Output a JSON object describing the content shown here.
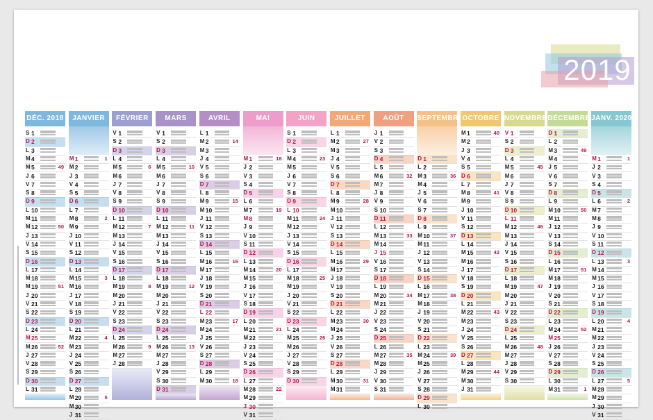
{
  "year": "2019",
  "palette": {
    "blue": "#7fb8df",
    "lavender": "#b1a2d2",
    "purple": "#9d86bd",
    "pink": "#e68fba",
    "lightpink": "#f1a9cd",
    "orange": "#f1a679",
    "peach": "#f3b28a",
    "yellow": "#f0d06f",
    "lightgreen": "#c9d98a",
    "teal": "#82c5cf"
  },
  "months": [
    {
      "name": "DÉC. 2018",
      "color": "#7fb8df",
      "first": "S",
      "start": 1,
      "days": 31,
      "offset": 0,
      "letters": [
        "S",
        "D",
        "L",
        "M",
        "M",
        "J",
        "V",
        "S",
        "D",
        "L",
        "M",
        "M",
        "J",
        "V",
        "S",
        "D",
        "L",
        "M",
        "M",
        "J",
        "V",
        "S",
        "D",
        "L",
        "M",
        "M",
        "J",
        "V",
        "S",
        "D",
        "L"
      ],
      "weeks": {
        "5": "49",
        "12": "50",
        "19": "51",
        "26": "52"
      },
      "holidays": [
        25
      ]
    },
    {
      "name": "JANVIER",
      "color": "#7fb8df",
      "first": "M",
      "start": 1,
      "days": 31,
      "offset": 3,
      "letters": [
        "M",
        "M",
        "J",
        "V",
        "S",
        "D",
        "L",
        "M",
        "M",
        "J",
        "V",
        "S",
        "D",
        "L",
        "M",
        "M",
        "J",
        "V",
        "S",
        "D",
        "L",
        "M",
        "M",
        "J",
        "V",
        "S",
        "D",
        "L",
        "M",
        "M",
        "J"
      ],
      "weeks": {
        "1": "1",
        "8": "2",
        "15": "3",
        "22": "4",
        "29": "5"
      },
      "holidays": [
        1
      ]
    },
    {
      "name": "FÉVRIER",
      "color": "#9d9fd1",
      "first": "V",
      "start": 1,
      "days": 28,
      "offset": 0,
      "letters": [
        "V",
        "S",
        "D",
        "L",
        "M",
        "M",
        "J",
        "V",
        "S",
        "D",
        "L",
        "M",
        "M",
        "J",
        "V",
        "S",
        "D",
        "L",
        "M",
        "M",
        "J",
        "V",
        "S",
        "D",
        "L",
        "M",
        "M",
        "J"
      ],
      "weeks": {
        "5": "6",
        "12": "7",
        "19": "8",
        "26": "9"
      },
      "holidays": []
    },
    {
      "name": "MARS",
      "color": "#a892c8",
      "first": "V",
      "start": 1,
      "days": 31,
      "offset": 0,
      "letters": [
        "V",
        "S",
        "D",
        "L",
        "M",
        "M",
        "J",
        "V",
        "S",
        "D",
        "L",
        "M",
        "M",
        "J",
        "V",
        "S",
        "D",
        "L",
        "M",
        "M",
        "J",
        "V",
        "S",
        "D",
        "L",
        "M",
        "M",
        "J",
        "V",
        "S",
        "D"
      ],
      "weeks": {
        "5": "10",
        "12": "11",
        "19": "12",
        "26": "13"
      },
      "holidays": []
    },
    {
      "name": "AVRIL",
      "color": "#b48fc6",
      "first": "L",
      "start": 1,
      "days": 30,
      "offset": 0,
      "letters": [
        "L",
        "M",
        "M",
        "J",
        "V",
        "S",
        "D",
        "L",
        "M",
        "M",
        "J",
        "V",
        "S",
        "D",
        "L",
        "M",
        "M",
        "J",
        "V",
        "S",
        "D",
        "L",
        "M",
        "M",
        "J",
        "V",
        "S",
        "D",
        "L",
        "M"
      ],
      "weeks": {
        "2": "14",
        "9": "15",
        "16": "16",
        "23": "17",
        "30": "18"
      },
      "holidays": [
        21,
        22
      ]
    },
    {
      "name": "MAI",
      "color": "#ee9ccb",
      "first": "M",
      "start": 1,
      "days": 31,
      "offset": 3,
      "letters": [
        "M",
        "J",
        "V",
        "S",
        "D",
        "L",
        "M",
        "M",
        "J",
        "V",
        "S",
        "D",
        "L",
        "M",
        "M",
        "J",
        "V",
        "S",
        "D",
        "L",
        "M",
        "M",
        "J",
        "V",
        "S",
        "D",
        "L",
        "M",
        "M",
        "J",
        "V"
      ],
      "weeks": {
        "1": "18",
        "7": "19",
        "14": "20",
        "21": "21",
        "28": "22"
      },
      "holidays": [
        1,
        8,
        30
      ]
    },
    {
      "name": "JUIN",
      "color": "#f2a3c6",
      "first": "S",
      "start": 1,
      "days": 30,
      "offset": 0,
      "letters": [
        "S",
        "D",
        "L",
        "M",
        "M",
        "J",
        "V",
        "S",
        "D",
        "L",
        "M",
        "M",
        "J",
        "V",
        "S",
        "D",
        "L",
        "M",
        "M",
        "J",
        "V",
        "S",
        "D",
        "L",
        "M",
        "M",
        "J",
        "V",
        "S",
        "D"
      ],
      "weeks": {
        "4": "23",
        "11": "24",
        "18": "25",
        "25": "26"
      },
      "holidays": [
        10
      ]
    },
    {
      "name": "JUILLET",
      "color": "#f3a879",
      "first": "L",
      "start": 1,
      "days": 31,
      "offset": 0,
      "letters": [
        "L",
        "M",
        "M",
        "J",
        "V",
        "S",
        "D",
        "L",
        "M",
        "M",
        "J",
        "V",
        "S",
        "D",
        "L",
        "M",
        "M",
        "J",
        "V",
        "S",
        "D",
        "L",
        "M",
        "M",
        "J",
        "V",
        "S",
        "D",
        "L",
        "M",
        "M"
      ],
      "weeks": {
        "2": "27",
        "9": "28",
        "16": "29",
        "23": "30",
        "30": "31"
      },
      "holidays": [
        14
      ]
    },
    {
      "name": "AOÛT",
      "color": "#f0a07e",
      "first": "J",
      "start": 1,
      "days": 31,
      "offset": 0,
      "letters": [
        "J",
        "V",
        "S",
        "D",
        "L",
        "M",
        "M",
        "J",
        "V",
        "S",
        "D",
        "L",
        "M",
        "M",
        "J",
        "V",
        "S",
        "D",
        "L",
        "M",
        "M",
        "J",
        "V",
        "S",
        "D",
        "L",
        "M",
        "M",
        "J",
        "V",
        "S"
      ],
      "weeks": {
        "6": "32",
        "13": "33",
        "20": "34",
        "27": "35"
      },
      "holidays": [
        15
      ]
    },
    {
      "name": "SEPTEMBRE",
      "color": "#f5c189",
      "first": "D",
      "start": 1,
      "days": 30,
      "offset": 3,
      "letters": [
        "D",
        "L",
        "M",
        "M",
        "J",
        "V",
        "S",
        "D",
        "L",
        "M",
        "M",
        "J",
        "V",
        "S",
        "D",
        "L",
        "M",
        "M",
        "J",
        "V",
        "S",
        "D",
        "L",
        "M",
        "M",
        "J",
        "V",
        "S",
        "D",
        "L"
      ],
      "weeks": {
        "3": "36",
        "10": "37",
        "17": "38",
        "24": "39"
      },
      "holidays": []
    },
    {
      "name": "OCTOBRE",
      "color": "#f2c66f",
      "first": "M",
      "start": 1,
      "days": 31,
      "offset": 0,
      "letters": [
        "M",
        "M",
        "J",
        "V",
        "S",
        "D",
        "L",
        "M",
        "M",
        "J",
        "V",
        "S",
        "D",
        "L",
        "M",
        "M",
        "J",
        "V",
        "S",
        "D",
        "L",
        "M",
        "M",
        "J",
        "V",
        "S",
        "D",
        "L",
        "M",
        "M",
        "J"
      ],
      "weeks": {
        "1": "40",
        "8": "41",
        "15": "42",
        "22": "43",
        "29": "44"
      },
      "holidays": []
    },
    {
      "name": "NOVEMBRE",
      "color": "#d7d98e",
      "first": "V",
      "start": 1,
      "days": 30,
      "offset": 0,
      "letters": [
        "V",
        "S",
        "D",
        "L",
        "M",
        "M",
        "J",
        "V",
        "S",
        "D",
        "L",
        "M",
        "M",
        "J",
        "V",
        "S",
        "D",
        "L",
        "M",
        "M",
        "J",
        "V",
        "S",
        "D",
        "L",
        "M",
        "M",
        "J",
        "V",
        "S"
      ],
      "weeks": {
        "5": "45",
        "12": "46",
        "19": "47",
        "26": "48"
      },
      "holidays": [
        1,
        11
      ]
    },
    {
      "name": "DÉCEMBRE",
      "color": "#c4db95",
      "first": "D",
      "start": 1,
      "days": 31,
      "offset": 0,
      "letters": [
        "D",
        "L",
        "M",
        "M",
        "J",
        "V",
        "S",
        "D",
        "L",
        "M",
        "M",
        "J",
        "V",
        "S",
        "D",
        "L",
        "M",
        "M",
        "J",
        "V",
        "S",
        "D",
        "L",
        "M",
        "M",
        "J",
        "V",
        "S",
        "D",
        "L",
        "M"
      ],
      "weeks": {
        "3": "49",
        "10": "50",
        "17": "51",
        "24": "52",
        "31": "1"
      },
      "holidays": [
        25
      ]
    },
    {
      "name": "JANV. 2020",
      "color": "#86c7d1",
      "first": "M",
      "start": 1,
      "days": 31,
      "offset": 3,
      "letters": [
        "M",
        "J",
        "V",
        "S",
        "D",
        "L",
        "M",
        "M",
        "J",
        "V",
        "S",
        "D",
        "L",
        "M",
        "M",
        "J",
        "V",
        "S",
        "D",
        "L",
        "M",
        "M",
        "J",
        "V",
        "S",
        "D",
        "L",
        "M",
        "M",
        "J",
        "V"
      ],
      "weeks": {
        "1": "1",
        "6": "2",
        "13": "3",
        "20": "4",
        "27": "5"
      },
      "holidays": [
        1
      ]
    }
  ]
}
